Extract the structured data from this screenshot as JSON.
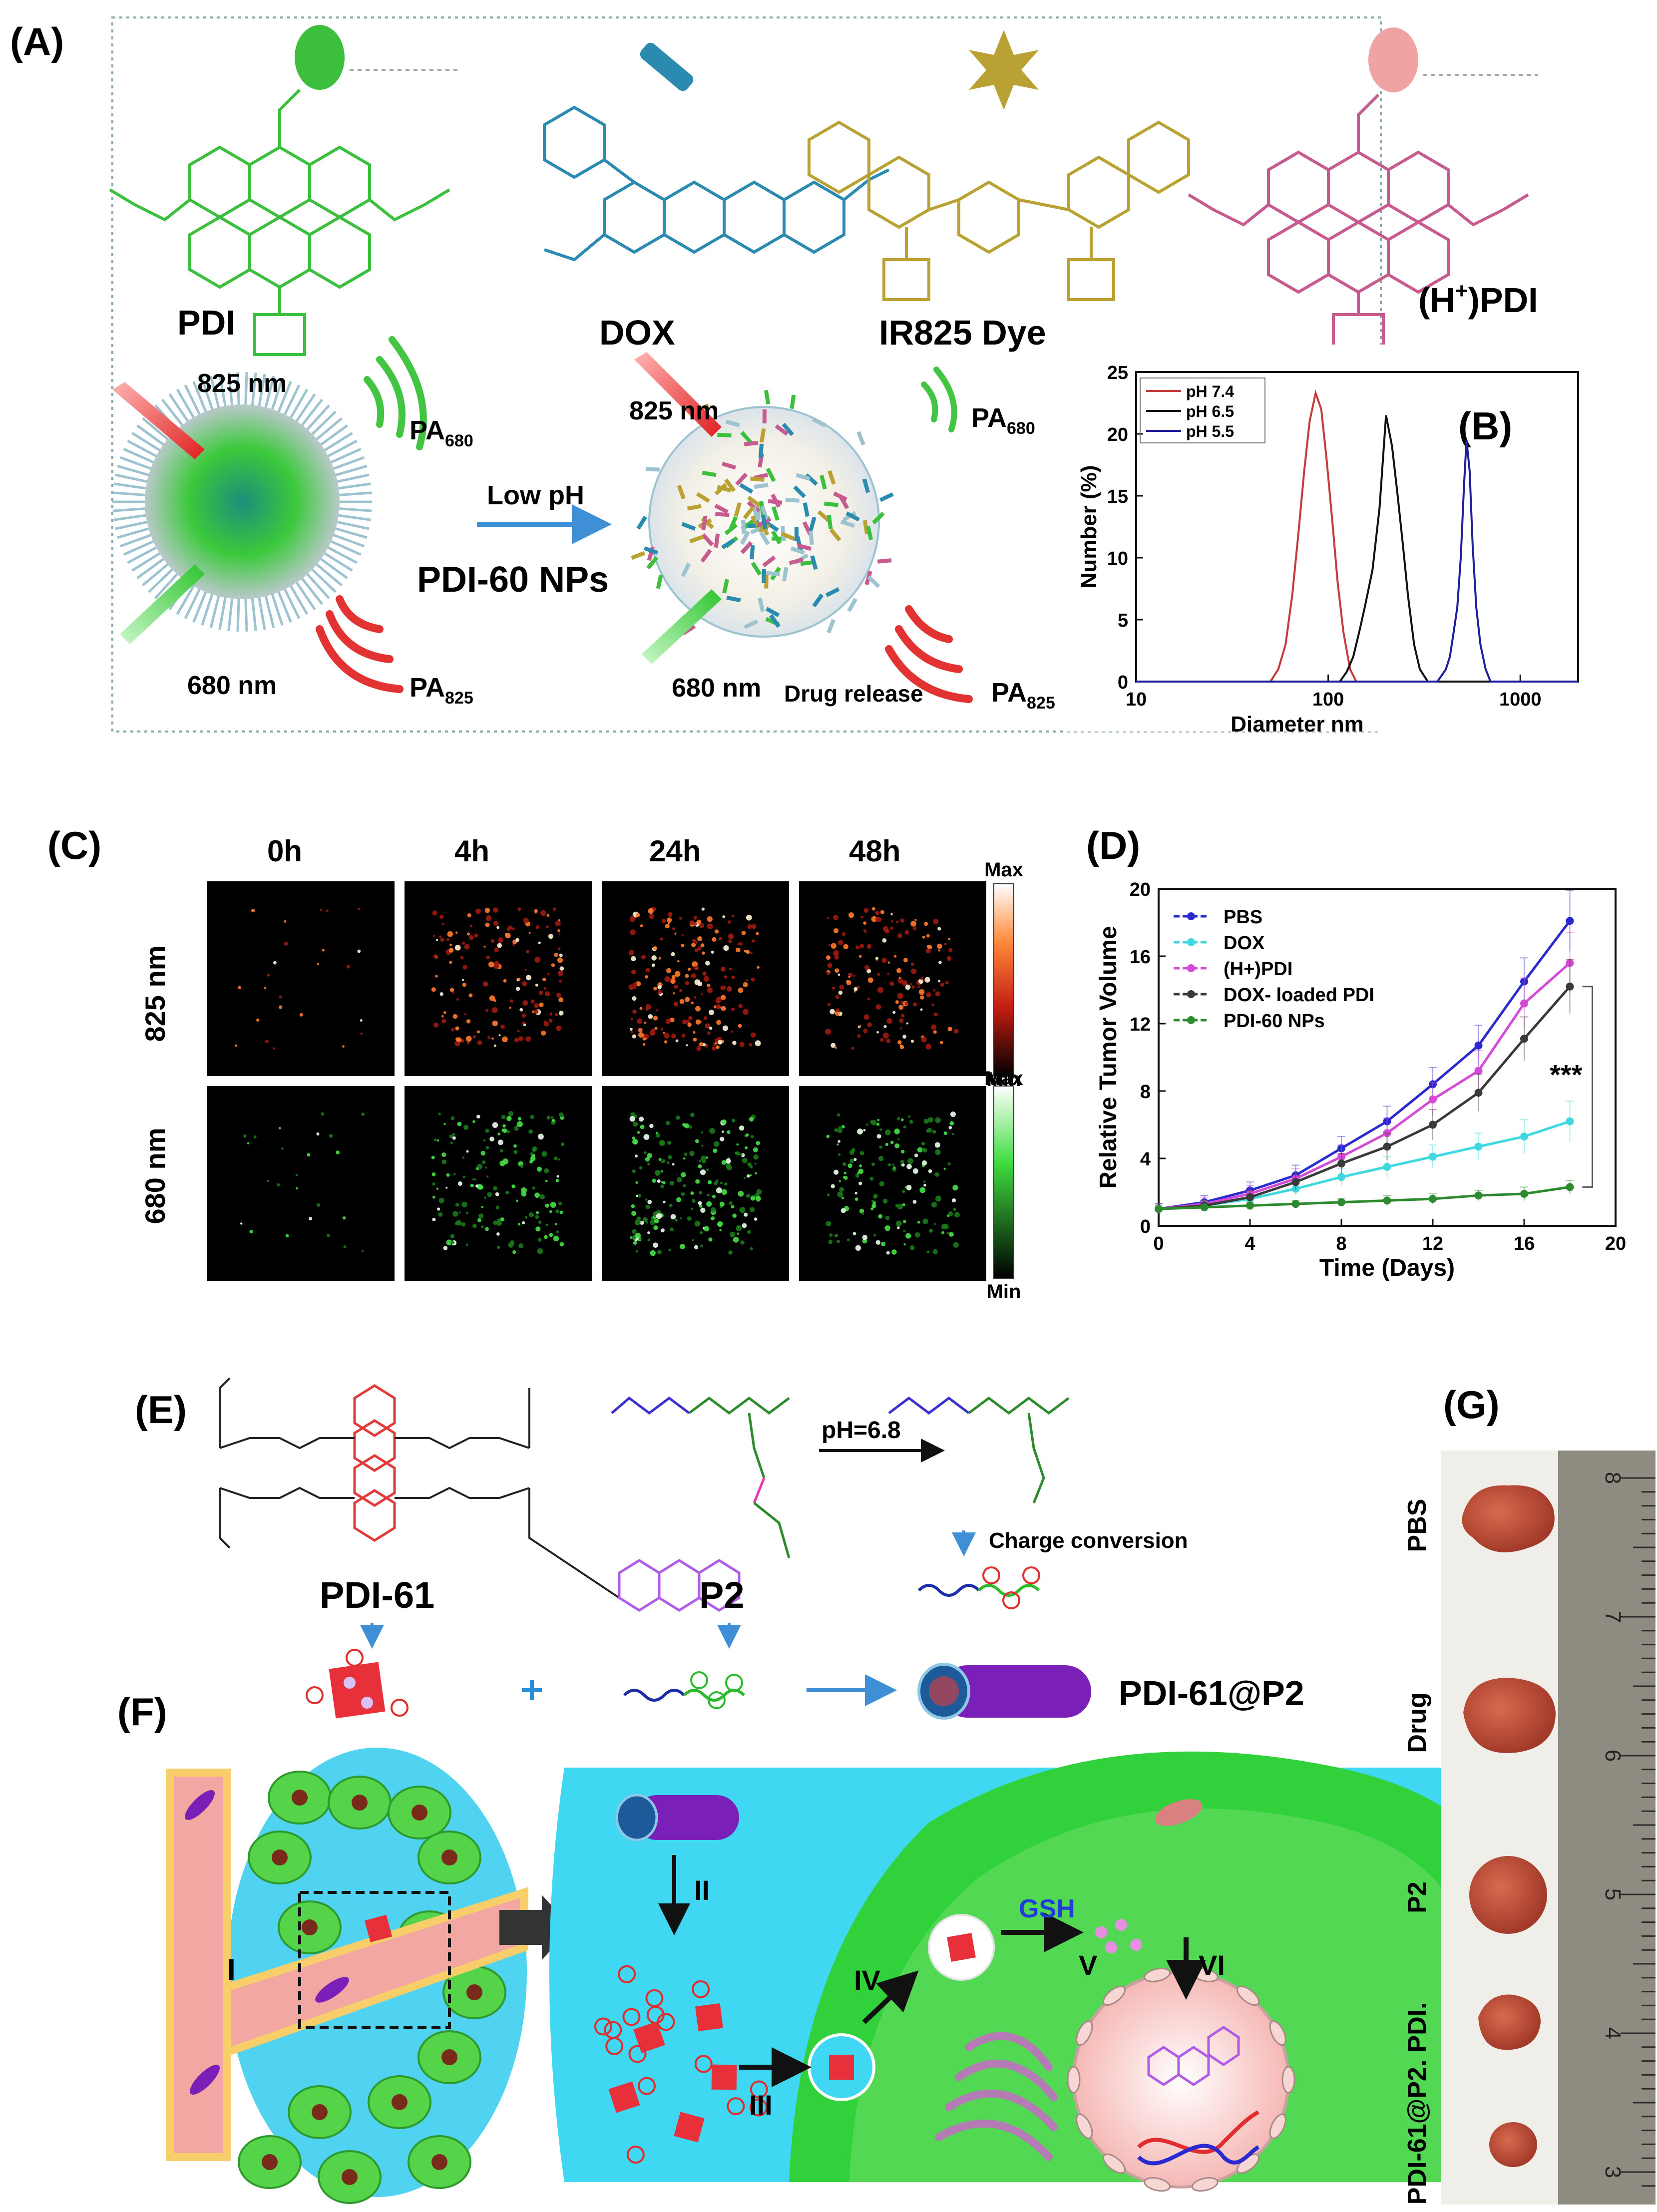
{
  "figure": {
    "panel_labels": {
      "A": "(A)",
      "B": "(B)",
      "C": "(C)",
      "D": "(D)",
      "E": "(E)",
      "F": "(F)",
      "G": "(G)"
    },
    "panelA": {
      "molecules": [
        "PDI",
        "DOX",
        "IR825 Dye",
        "(H",
        "+",
        ")PDI"
      ],
      "nanoparticle_label": "PDI-60 NPs",
      "arrow_label": "Low pH",
      "wavelength_825": "825 nm",
      "wavelength_680": "680 nm",
      "pa_base": "PA",
      "pa_680": "680",
      "pa_825": "825",
      "drug_release": "Drug release"
    },
    "panelC": {
      "time_labels": [
        "0h",
        "4h",
        "24h",
        "48h"
      ],
      "row_labels": [
        "825 nm",
        "680 nm"
      ],
      "scale_max": "Max",
      "scale_min": "Min"
    },
    "panelE": {
      "compounds": [
        "PDI-61",
        "P2"
      ],
      "ph_label": "pH=6.8",
      "charge_conversion": "Charge conversion",
      "product": "PDI-61@P2"
    },
    "panelF": {
      "steps": [
        "I",
        "II",
        "III",
        "IV",
        "V",
        "VI"
      ],
      "gsh": "GSH"
    },
    "panelG": {
      "rows": [
        "PBS",
        "Drug",
        "P2",
        "PDI.",
        "PDI-61@P2."
      ],
      "ruler_ticks": [
        "8",
        "7",
        "6",
        "5",
        "4",
        "3"
      ]
    }
  },
  "colors": {
    "pdi_green": "#3cbf3c",
    "dox_blue": "#2a8ab0",
    "ir825_gold": "#b9a233",
    "h_pdi_pink": "#c75a8e",
    "laser_red": "#e22a2a",
    "laser_green": "#3fd53f",
    "cell_green": "#31d13b",
    "extracell_cyan": "#40d7f2",
    "vessel_pink": "#f2a7a2"
  },
  "chart_data": [
    {
      "type": "line",
      "panel": "B",
      "title": "",
      "xlabel": "Diameter nm",
      "ylabel": "Number (%)",
      "xscale": "log",
      "xlim": [
        10,
        2000
      ],
      "ylim": [
        0,
        25
      ],
      "xticks": [
        "10",
        "100",
        "1000"
      ],
      "yticks": [
        "0",
        "5",
        "10",
        "15",
        "20",
        "25"
      ],
      "legend_position": "top-left",
      "series": [
        {
          "name": "pH 7.4",
          "color": "#c43c3c",
          "x": [
            10,
            50,
            55,
            60,
            65,
            70,
            75,
            80,
            86,
            92,
            98,
            105,
            112,
            120,
            130,
            140,
            2000
          ],
          "y": [
            0,
            0,
            1,
            3,
            7,
            12,
            17,
            21,
            23.3,
            22,
            18,
            13,
            8,
            4,
            1,
            0,
            0
          ]
        },
        {
          "name": "pH 6.5",
          "color": "#111111",
          "x": [
            10,
            115,
            125,
            135,
            145,
            155,
            170,
            185,
            200,
            215,
            230,
            245,
            260,
            280,
            300,
            330,
            2000
          ],
          "y": [
            0,
            0,
            0.8,
            2,
            4,
            6,
            9,
            14,
            21.5,
            19,
            15,
            11,
            7,
            3,
            1,
            0,
            0
          ]
        },
        {
          "name": "pH 5.5",
          "color": "#1d1d9e",
          "x": [
            10,
            370,
            390,
            410,
            430,
            450,
            470,
            490,
            510,
            525,
            545,
            565,
            590,
            620,
            660,
            700,
            2000
          ],
          "y": [
            0,
            0,
            0.5,
            1,
            2,
            4,
            6,
            10,
            16,
            19.5,
            17,
            11,
            6,
            3,
            1,
            0,
            0
          ]
        }
      ]
    },
    {
      "type": "line",
      "panel": "D",
      "title": "",
      "xlabel": "Time (Days)",
      "ylabel": "Relative Tumor Volume",
      "xlim": [
        0,
        20
      ],
      "ylim": [
        0,
        20
      ],
      "xticks": [
        "0",
        "4",
        "8",
        "12",
        "16",
        "20"
      ],
      "yticks": [
        "0",
        "4",
        "8",
        "12",
        "16",
        "20"
      ],
      "legend_position": "top-left",
      "annotation": "***",
      "x": [
        0,
        2,
        4,
        6,
        8,
        10,
        12,
        14,
        16,
        18
      ],
      "series": [
        {
          "name": "PBS",
          "color": "#2a2ad0",
          "marker": "square",
          "values": [
            1.0,
            1.4,
            2.1,
            3.0,
            4.6,
            6.2,
            8.4,
            10.7,
            14.5,
            18.1
          ],
          "errors": [
            0.3,
            0.4,
            0.5,
            0.6,
            0.7,
            0.9,
            1.0,
            1.2,
            1.4,
            1.8
          ]
        },
        {
          "name": "DOX",
          "color": "#3fd8e0",
          "marker": "circle",
          "values": [
            1.0,
            1.2,
            1.6,
            2.2,
            2.9,
            3.5,
            4.1,
            4.7,
            5.3,
            6.2
          ],
          "errors": [
            0.2,
            0.3,
            0.3,
            0.4,
            0.5,
            0.6,
            0.7,
            0.8,
            1.0,
            1.2
          ]
        },
        {
          "name": "(H+)PDI",
          "color": "#d44ad4",
          "marker": "triangle-up",
          "values": [
            1.0,
            1.3,
            1.9,
            2.8,
            4.1,
            5.5,
            7.5,
            9.2,
            13.2,
            15.6
          ],
          "errors": [
            0.3,
            0.4,
            0.5,
            0.6,
            0.7,
            0.9,
            1.0,
            1.2,
            1.5,
            1.8
          ]
        },
        {
          "name": "DOX- loaded PDI",
          "color": "#3a3a3a",
          "marker": "triangle-down",
          "values": [
            1.0,
            1.2,
            1.7,
            2.6,
            3.7,
            4.7,
            6.0,
            7.9,
            11.1,
            14.2
          ],
          "errors": [
            0.3,
            0.3,
            0.4,
            0.5,
            0.6,
            0.8,
            0.9,
            1.1,
            1.3,
            1.6
          ]
        },
        {
          "name": "PDI-60 NPs",
          "color": "#2e8a2e",
          "marker": "circle",
          "values": [
            1.0,
            1.1,
            1.2,
            1.3,
            1.4,
            1.5,
            1.6,
            1.8,
            1.9,
            2.3
          ],
          "errors": [
            0.1,
            0.1,
            0.2,
            0.2,
            0.2,
            0.3,
            0.3,
            0.3,
            0.4,
            0.4
          ]
        }
      ]
    }
  ]
}
